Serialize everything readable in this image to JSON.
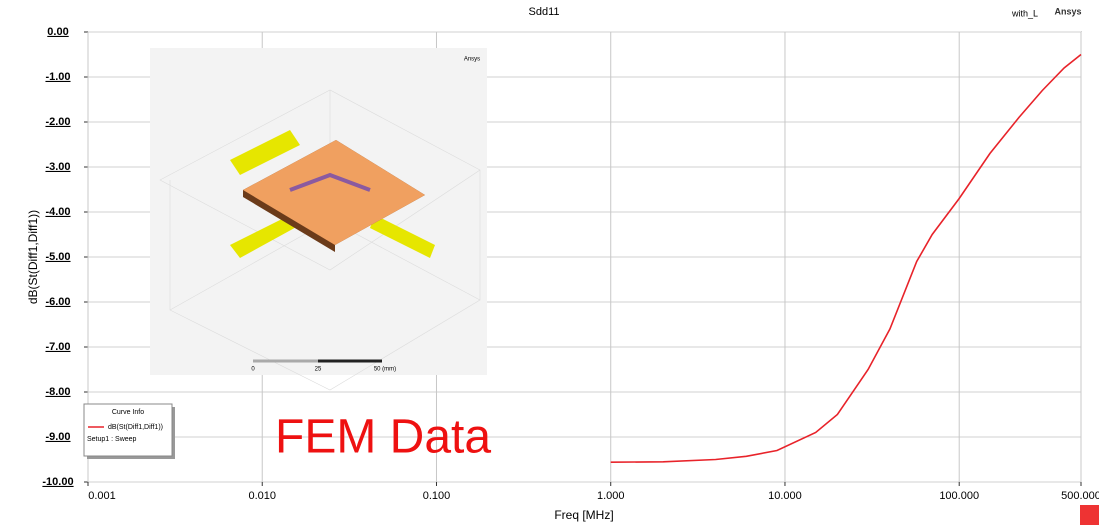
{
  "chart_data": {
    "type": "line",
    "title": "Sdd11",
    "annotations": [
      "with_L",
      "Ansys",
      "FEM Data"
    ],
    "xlabel": "Freq [MHz]",
    "ylabel": "dB(St(Diff1,Diff1))",
    "xscale": "log",
    "xlim": [
      0.001,
      500
    ],
    "ylim": [
      -10,
      0
    ],
    "grid": true,
    "xticks": [
      {
        "value": 0.001,
        "label": "0.001"
      },
      {
        "value": 0.01,
        "label": "0.010"
      },
      {
        "value": 0.1,
        "label": "0.100"
      },
      {
        "value": 1,
        "label": "1.000"
      },
      {
        "value": 10,
        "label": "10.000"
      },
      {
        "value": 100,
        "label": "100.000"
      },
      {
        "value": 500,
        "label": "500.000"
      }
    ],
    "yticks": [
      {
        "value": 0,
        "label": "0.00"
      },
      {
        "value": -1,
        "label": "-1.00"
      },
      {
        "value": -2,
        "label": "-2.00"
      },
      {
        "value": -3,
        "label": "-3.00"
      },
      {
        "value": -4,
        "label": "-4.00"
      },
      {
        "value": -5,
        "label": "-5.00"
      },
      {
        "value": -6,
        "label": "-6.00"
      },
      {
        "value": -7,
        "label": "-7.00"
      },
      {
        "value": -8,
        "label": "-8.00"
      },
      {
        "value": -9,
        "label": "-9.00"
      },
      {
        "value": -10,
        "label": "-10.00"
      }
    ],
    "x": [
      1,
      2,
      4,
      6,
      9,
      15,
      20,
      30,
      40,
      57,
      70,
      100,
      150,
      220,
      300,
      400,
      500
    ],
    "series": [
      {
        "name": "dB(St(Diff1,Diff1))",
        "color": "#e8232a",
        "values": [
          -9.56,
          -9.55,
          -9.5,
          -9.43,
          -9.3,
          -8.9,
          -8.5,
          -7.5,
          -6.6,
          -5.1,
          -4.5,
          -3.7,
          -2.7,
          -1.9,
          -1.3,
          -0.8,
          -0.5
        ]
      }
    ],
    "legend": {
      "title": "Curve Info",
      "setup": "Setup1 : Sweep",
      "position": "lower left"
    },
    "inset_labels": [
      "Ansys",
      "0",
      "25",
      "50 (mm)"
    ]
  }
}
